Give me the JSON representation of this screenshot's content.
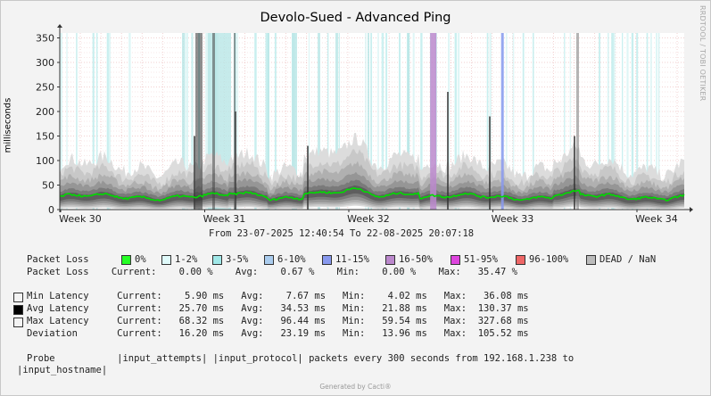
{
  "title": "Devolo-Sued - Advanced Ping",
  "side_label": "RRDTOOL / TOBI OETIKER",
  "generated": "Generated by Cacti®",
  "colors": {
    "median": "#00dd00",
    "loss_0": "#26ff26",
    "loss_1_2": "#dffafa",
    "loss_3_5": "#a0e8e8",
    "loss_6_10": "#aaccee",
    "loss_11_15": "#8899ee",
    "loss_16_50": "#bb88cc",
    "loss_51_95": "#dd44dd",
    "loss_96_100": "#ee6666",
    "dead": "#bbbbbb"
  },
  "chart_data": {
    "type": "area",
    "title": "Devolo-Sued - Advanced Ping",
    "ylabel": "milliseconds",
    "ylim": [
      0,
      360
    ],
    "yticks": [
      0,
      50,
      100,
      150,
      200,
      250,
      300,
      350
    ],
    "xticks": [
      "Week 30",
      "Week 31",
      "Week 32",
      "Week 33",
      "Week 34"
    ],
    "range_text": "From 23-07-2025 12:40:54 To 22-08-2025 20:07:18",
    "series": [
      {
        "name": "Min Latency",
        "values": {
          "current": 5.9,
          "avg": 7.67,
          "min": 4.02,
          "max": 36.08
        }
      },
      {
        "name": "Avg Latency",
        "values": {
          "current": 25.7,
          "avg": 34.53,
          "min": 21.88,
          "max": 130.37
        }
      },
      {
        "name": "Max Latency",
        "values": {
          "current": 68.32,
          "avg": 96.44,
          "min": 59.54,
          "max": 327.68
        }
      },
      {
        "name": "Deviation",
        "values": {
          "current": 16.2,
          "avg": 23.19,
          "min": 13.96,
          "max": 105.52
        }
      }
    ],
    "packet_loss": {
      "current": "0.00 %",
      "avg": "0.67 %",
      "min": "0.00 %",
      "max": "35.47 %"
    },
    "loss_spikes": [
      {
        "week_pos": 32.45,
        "loss_class": "16-50%"
      },
      {
        "week_pos": 32.93,
        "loss_class": "11-15%"
      }
    ]
  },
  "legend": {
    "packet_loss_label": "Packet Loss",
    "loss_items": [
      {
        "label": "0%",
        "color": "#26ff26"
      },
      {
        "label": "1-2%",
        "color": "#dffafa"
      },
      {
        "label": "3-5%",
        "color": "#a0e8e8"
      },
      {
        "label": "6-10%",
        "color": "#aaccee"
      },
      {
        "label": "11-15%",
        "color": "#8899ee"
      },
      {
        "label": "16-50%",
        "color": "#bb88cc"
      },
      {
        "label": "51-95%",
        "color": "#dd44dd"
      },
      {
        "label": "96-100%",
        "color": "#ee6666"
      },
      {
        "label": "DEAD / NaN",
        "color": "#bbbbbb"
      }
    ],
    "loss_stats_line": "Packet Loss    Current:    0.00 %    Avg:    0.67 %    Min:    0.00 %    Max:   35.47 %",
    "rows": [
      {
        "label": "Min Latency",
        "line": "Min Latency     Current:    5.90 ms   Avg:    7.67 ms   Min:    4.02 ms   Max:   36.08 ms",
        "swatch": "#f3f3f3"
      },
      {
        "label": "Avg Latency",
        "line": "Avg Latency     Current:   25.70 ms   Avg:   34.53 ms   Min:   21.88 ms   Max:  130.37 ms",
        "swatch": "#000000"
      },
      {
        "label": "Max Latency",
        "line": "Max Latency     Current:   68.32 ms   Avg:   96.44 ms   Min:   59.54 ms   Max:  327.68 ms",
        "swatch": "#f3f3f3"
      },
      {
        "label": "Deviation",
        "line": "Deviation       Current:   16.20 ms   Avg:   23.19 ms   Min:   13.96 ms   Max:  105.52 ms"
      }
    ],
    "probe_line1": "Probe           |input_attempts| |input_protocol| packets every 300 seconds from 192.168.1.238 to",
    "probe_line2": "|input_hostname|"
  }
}
